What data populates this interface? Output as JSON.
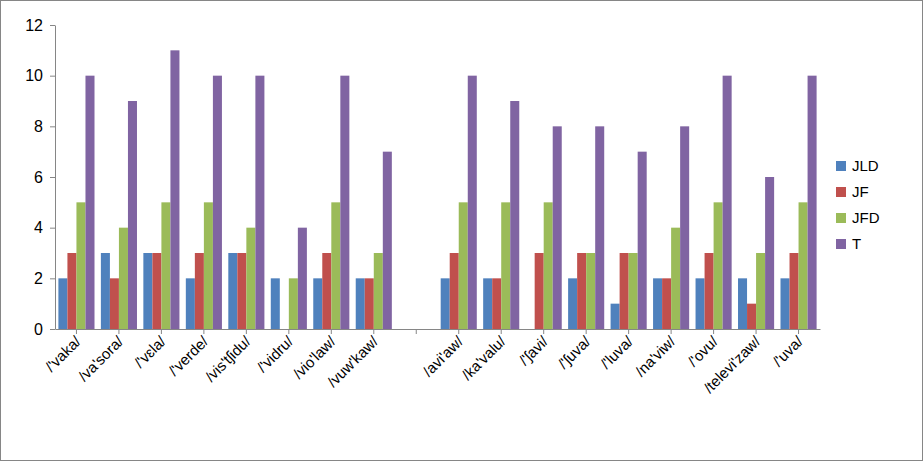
{
  "chart_data": {
    "type": "bar",
    "categories": [
      "/'vaka/",
      "/va'sora/",
      "/'vɛla/",
      "/'verde/",
      "/vis'tʃidu/",
      "/'vidru/",
      "/vio'law/",
      "/vuw'kaw/",
      null,
      "/avi'aw/",
      "/ka'valu/",
      "/'ʃavi/",
      "/'ʃuva/",
      "/'luva/",
      "/na'viw/",
      "/'ovu/",
      "/televi'zaw/",
      "/'uva/"
    ],
    "series": [
      {
        "name": "JLD",
        "color": "#4f81bd",
        "values": [
          2,
          3,
          3,
          2,
          3,
          2,
          2,
          2,
          null,
          2,
          2,
          0,
          2,
          1,
          2,
          2,
          2,
          2
        ]
      },
      {
        "name": "JF",
        "color": "#c0504d",
        "values": [
          3,
          2,
          3,
          3,
          3,
          0,
          3,
          2,
          null,
          3,
          2,
          3,
          3,
          3,
          2,
          3,
          1,
          3
        ]
      },
      {
        "name": "JFD",
        "color": "#9bbb59",
        "values": [
          5,
          4,
          5,
          5,
          4,
          2,
          5,
          3,
          null,
          5,
          5,
          5,
          3,
          3,
          4,
          5,
          3,
          5
        ]
      },
      {
        "name": "T",
        "color": "#8064a2",
        "values": [
          10,
          9,
          11,
          10,
          10,
          4,
          10,
          7,
          null,
          10,
          9,
          8,
          8,
          7,
          8,
          10,
          6,
          10
        ]
      }
    ],
    "ylim": [
      0,
      12
    ],
    "yticks": [
      0,
      2,
      4,
      6,
      8,
      10,
      12
    ],
    "grid": false,
    "legend": "right"
  }
}
